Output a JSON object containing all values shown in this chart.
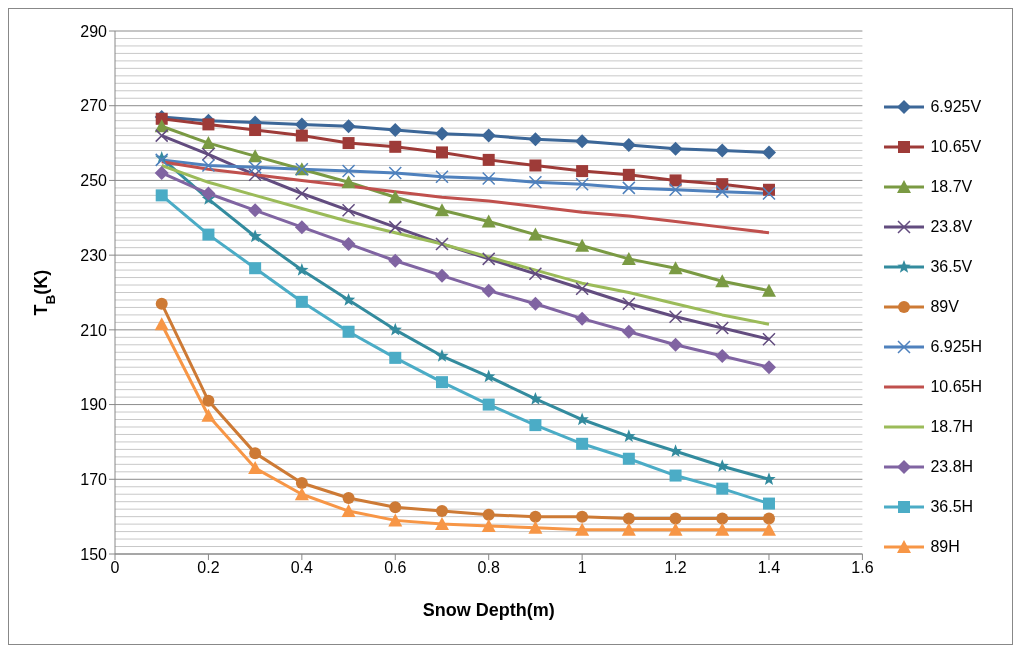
{
  "chart_data": {
    "type": "line",
    "xlabel": "Snow Depth(m)",
    "ylabel": "T$_{B}$(K)",
    "x": [
      0.1,
      0.2,
      0.3,
      0.4,
      0.5,
      0.6,
      0.7,
      0.8,
      0.9,
      1,
      1.1,
      1.2,
      1.3,
      1.4
    ],
    "xlim": [
      0,
      1.6
    ],
    "xticks": [
      0,
      0.2,
      0.4,
      0.6,
      0.8,
      1,
      1.2,
      1.4,
      1.6
    ],
    "ylim": [
      150,
      290
    ],
    "yticks": [
      150,
      170,
      190,
      210,
      230,
      250,
      270,
      290
    ],
    "grid": "y",
    "legend": "right",
    "series": [
      {
        "name": "6.925V",
        "color": "#3c6798",
        "marker": "diamond",
        "values": [
          267,
          266,
          265.5,
          265,
          264.5,
          263.5,
          262.5,
          262,
          261,
          260.5,
          259.5,
          258.5,
          258,
          257.5
        ]
      },
      {
        "name": "10.65V",
        "color": "#9e3b38",
        "marker": "square",
        "values": [
          266.5,
          265,
          263.5,
          262,
          260,
          259,
          257.5,
          255.5,
          254,
          252.5,
          251.5,
          250,
          249,
          247.5
        ]
      },
      {
        "name": "18.7V",
        "color": "#7a9a43",
        "marker": "triangle",
        "values": [
          264.5,
          260,
          256.5,
          253,
          249.5,
          245.5,
          242,
          239,
          235.5,
          232.5,
          229,
          226.5,
          223,
          220.5
        ]
      },
      {
        "name": "23.8V",
        "color": "#624c7f",
        "marker": "cross",
        "values": [
          262,
          257,
          251.5,
          246.5,
          242,
          237.5,
          233,
          229,
          225,
          221,
          217,
          213.5,
          210.5,
          207.5
        ]
      },
      {
        "name": "36.5V",
        "color": "#338b9e",
        "marker": "star",
        "values": [
          256,
          245,
          235,
          226,
          218,
          210,
          203,
          197.5,
          191.5,
          186,
          181.5,
          177.5,
          173.5,
          170
        ]
      },
      {
        "name": "89V",
        "color": "#cd7a35",
        "marker": "circle",
        "values": [
          217,
          191,
          177,
          169,
          165,
          162.5,
          161.5,
          160.5,
          160,
          160,
          159.5,
          159.5,
          159.5,
          159.5
        ]
      },
      {
        "name": "6.925H",
        "color": "#4f81bd",
        "marker": "cross",
        "values": [
          255.5,
          254,
          253.5,
          253,
          252.5,
          252,
          251,
          250.5,
          249.5,
          249,
          248,
          247.5,
          247,
          246.5
        ]
      },
      {
        "name": "10.65H",
        "color": "#c0504d",
        "marker": "none",
        "values": [
          255,
          253,
          251.5,
          250,
          248.5,
          247,
          245.5,
          244.5,
          243,
          241.5,
          240.5,
          239,
          237.5,
          236
        ]
      },
      {
        "name": "18.7H",
        "color": "#9bbb59",
        "marker": "none",
        "values": [
          254,
          249.5,
          246,
          242.5,
          239,
          236,
          233,
          229.5,
          226,
          222.5,
          220,
          217,
          214,
          211.5
        ]
      },
      {
        "name": "23.8H",
        "color": "#8064a2",
        "marker": "diamond",
        "values": [
          252,
          246.5,
          242,
          237.5,
          233,
          228.5,
          224.5,
          220.5,
          217,
          213,
          209.5,
          206,
          203,
          200
        ]
      },
      {
        "name": "36.5H",
        "color": "#4bacc6",
        "marker": "square",
        "values": [
          246,
          235.5,
          226.5,
          217.5,
          209.5,
          202.5,
          196,
          190,
          184.5,
          179.5,
          175.5,
          171,
          167.5,
          163.5
        ]
      },
      {
        "name": "89H",
        "color": "#f79646",
        "marker": "triangle",
        "values": [
          211.5,
          187,
          173,
          166,
          161.5,
          159,
          158,
          157.5,
          157,
          156.5,
          156.5,
          156.5,
          156.5,
          156.5
        ]
      }
    ]
  }
}
